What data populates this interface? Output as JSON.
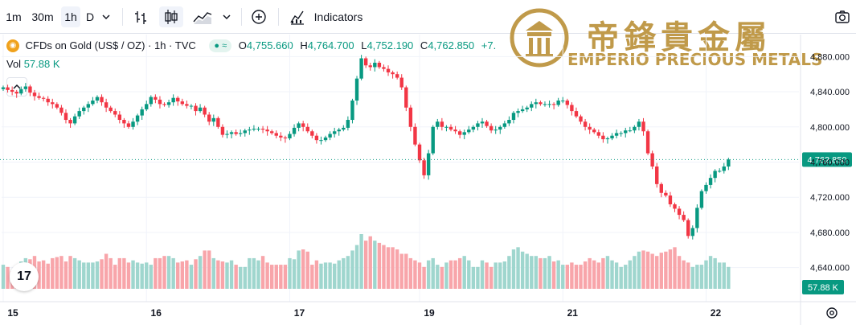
{
  "toolbar": {
    "intervals": [
      "1m",
      "30m",
      "1h",
      "D"
    ],
    "active_interval": "1h",
    "indicators_label": "Indicators"
  },
  "symbol": {
    "name": "CFDs on Gold (US$ / OZ) · 1h · TVC",
    "open_label": "O",
    "open": "4,755.660",
    "high_label": "H",
    "high": "4,764.700",
    "low_label": "L",
    "low": "4,752.190",
    "close_label": "C",
    "close": "4,762.850",
    "change": "+7.",
    "pill_text": "≈",
    "vol_label": "Vol",
    "vol_value": "57.88 K"
  },
  "logo": {
    "chinese": "帝鋒貴金屬",
    "english": "EMPERIO PRECIOUS METALS"
  },
  "tv_logo": "17",
  "colors": {
    "up": "#089981",
    "down": "#f23645",
    "vol_up": "#9fd6ce",
    "vol_down": "#f8a5aa",
    "grid": "#f0f3fa",
    "axis_text": "#131722"
  },
  "chart_data": {
    "type": "candlestick",
    "y_ticks": [
      "4,880.000",
      "4,840.000",
      "4,800.000",
      "4,760.000",
      "4,720.000",
      "4,680.000",
      "4,640.000"
    ],
    "y_tick_values": [
      4880,
      4840,
      4800,
      4760,
      4720,
      4680,
      4640
    ],
    "ylim": [
      4615,
      4905
    ],
    "last_price_label": "4,762.850",
    "last_price": 4762.85,
    "volume_label": "57.88 K",
    "x_labels": [
      "15",
      "16",
      "17",
      "19",
      "21",
      "22"
    ],
    "x_label_index": [
      0,
      32,
      64,
      93,
      125,
      157
    ],
    "closes": [
      4845,
      4842,
      4840,
      4838,
      4843,
      4846,
      4839,
      4835,
      4833,
      4832,
      4828,
      4826,
      4822,
      4816,
      4808,
      4804,
      4812,
      4818,
      4822,
      4826,
      4830,
      4834,
      4828,
      4822,
      4818,
      4814,
      4808,
      4804,
      4800,
      4806,
      4813,
      4820,
      4826,
      4834,
      4831,
      4826,
      4825,
      4828,
      4833,
      4829,
      4826,
      4824,
      4824,
      4818,
      4822,
      4814,
      4806,
      4810,
      4800,
      4791,
      4792,
      4794,
      4792,
      4793,
      4796,
      4797,
      4798,
      4798,
      4797,
      4795,
      4793,
      4790,
      4788,
      4787,
      4792,
      4799,
      4804,
      4800,
      4795,
      4790,
      4785,
      4785,
      4788,
      4792,
      4795,
      4797,
      4799,
      4808,
      4830,
      4855,
      4878,
      4870,
      4868,
      4873,
      4868,
      4866,
      4862,
      4860,
      4856,
      4845,
      4822,
      4800,
      4780,
      4762,
      4745,
      4770,
      4800,
      4806,
      4800,
      4800,
      4797,
      4795,
      4791,
      4794,
      4797,
      4800,
      4804,
      4806,
      4801,
      4796,
      4797,
      4800,
      4804,
      4808,
      4816,
      4818,
      4820,
      4822,
      4826,
      4828,
      4826,
      4826,
      4826,
      4825,
      4830,
      4830,
      4825,
      4818,
      4812,
      4806,
      4800,
      4797,
      4794,
      4790,
      4786,
      4787,
      4790,
      4793,
      4793,
      4796,
      4796,
      4800,
      4806,
      4795,
      4770,
      4755,
      4735,
      4725,
      4722,
      4712,
      4707,
      4700,
      4694,
      4676,
      4685,
      4708,
      4727,
      4734,
      4742,
      4750,
      4750,
      4755,
      4763
    ],
    "volumes": [
      22,
      20,
      16,
      20,
      25,
      28,
      27,
      30,
      25,
      26,
      23,
      28,
      29,
      30,
      25,
      30,
      28,
      26,
      24,
      24,
      24,
      25,
      27,
      32,
      28,
      22,
      28,
      28,
      24,
      26,
      24,
      23,
      24,
      22,
      28,
      28,
      30,
      30,
      28,
      24,
      25,
      26,
      22,
      27,
      30,
      35,
      35,
      28,
      26,
      25,
      24,
      26,
      22,
      20,
      20,
      28,
      28,
      26,
      30,
      24,
      22,
      22,
      22,
      22,
      28,
      27,
      35,
      36,
      34,
      22,
      26,
      23,
      24,
      24,
      23,
      26,
      28,
      30,
      35,
      40,
      50,
      44,
      48,
      44,
      42,
      40,
      38,
      38,
      36,
      32,
      32,
      28,
      26,
      24,
      20,
      26,
      28,
      22,
      20,
      24,
      26,
      26,
      28,
      30,
      26,
      20,
      20,
      26,
      24,
      20,
      24,
      24,
      25,
      30,
      36,
      38,
      34,
      32,
      30,
      30,
      28,
      28,
      30,
      25,
      26,
      22,
      22,
      24,
      22,
      22,
      25,
      28,
      26,
      24,
      28,
      30,
      26,
      24,
      20,
      22,
      26,
      30,
      34,
      35,
      34,
      32,
      30,
      33,
      34,
      36,
      38,
      30,
      26,
      24,
      20,
      22,
      22,
      26,
      30,
      28,
      24,
      24,
      20
    ]
  }
}
